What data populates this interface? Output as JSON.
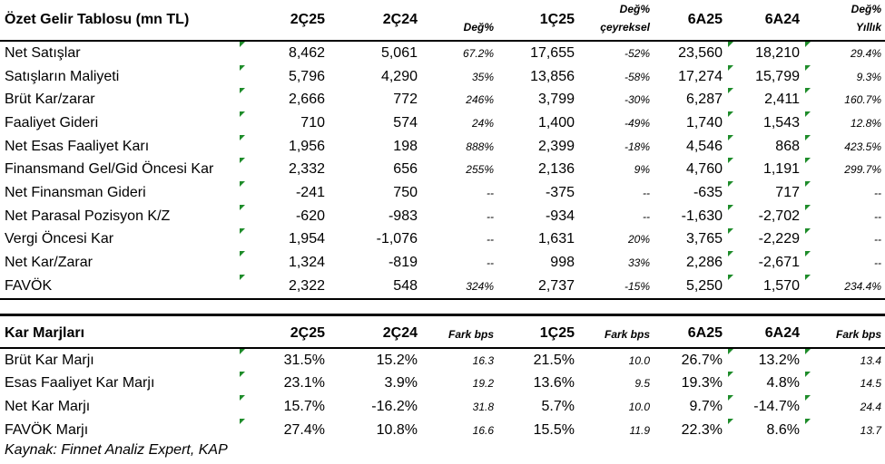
{
  "income": {
    "title": "Özet Gelir Tablosu (mn TL)",
    "columns": [
      "2Ç25",
      "2Ç24",
      "Değ%",
      "1Ç25",
      "Değ%\nçeyreksel",
      "6A25",
      "6A24",
      "Değ%\nYıllık"
    ],
    "rows": [
      {
        "label": "Net Satışlar",
        "cells": [
          "8,462",
          "5,061",
          "67.2%",
          "17,655",
          "-52%",
          "23,560",
          "18,210",
          "29.4%"
        ]
      },
      {
        "label": "Satışların Maliyeti",
        "cells": [
          "5,796",
          "4,290",
          "35%",
          "13,856",
          "-58%",
          "17,274",
          "15,799",
          "9.3%"
        ]
      },
      {
        "label": "Brüt Kar/zarar",
        "cells": [
          "2,666",
          "772",
          "246%",
          "3,799",
          "-30%",
          "6,287",
          "2,411",
          "160.7%"
        ]
      },
      {
        "label": "Faaliyet Gideri",
        "cells": [
          "710",
          "574",
          "24%",
          "1,400",
          "-49%",
          "1,740",
          "1,543",
          "12.8%"
        ]
      },
      {
        "label": "Net Esas Faaliyet Karı",
        "cells": [
          "1,956",
          "198",
          "888%",
          "2,399",
          "-18%",
          "4,546",
          "868",
          "423.5%"
        ]
      },
      {
        "label": "Finansmand Gel/Gid Öncesi Kar",
        "cells": [
          "2,332",
          "656",
          "255%",
          "2,136",
          "9%",
          "4,760",
          "1,191",
          "299.7%"
        ]
      },
      {
        "label": "Net Finansman Gideri",
        "cells": [
          "-241",
          "750",
          "--",
          "-375",
          "--",
          "-635",
          "717",
          "--"
        ]
      },
      {
        "label": "Net Parasal Pozisyon K/Z",
        "cells": [
          "-620",
          "-983",
          "--",
          "-934",
          "--",
          "-1,630",
          "-2,702",
          "--"
        ]
      },
      {
        "label": "Vergi Öncesi Kar",
        "cells": [
          "1,954",
          "-1,076",
          "--",
          "1,631",
          "20%",
          "3,765",
          "-2,229",
          "--"
        ]
      },
      {
        "label": "Net Kar/Zarar",
        "cells": [
          "1,324",
          "-819",
          "--",
          "998",
          "33%",
          "2,286",
          "-2,671",
          "--"
        ]
      },
      {
        "label": "FAVÖK",
        "cells": [
          "2,322",
          "548",
          "324%",
          "2,737",
          "-15%",
          "5,250",
          "1,570",
          "234.4%"
        ]
      }
    ]
  },
  "margins": {
    "title": "Kar Marjları",
    "columns": [
      "2Ç25",
      "2Ç24",
      "Fark bps",
      "1Ç25",
      "Fark bps",
      "6A25",
      "6A24",
      "Fark bps"
    ],
    "rows": [
      {
        "label": "Brüt Kar Marjı",
        "cells": [
          "31.5%",
          "15.2%",
          "16.3",
          "21.5%",
          "10.0",
          "26.7%",
          "13.2%",
          "13.4"
        ]
      },
      {
        "label": "Esas Faaliyet Kar Marjı",
        "cells": [
          "23.1%",
          "3.9%",
          "19.2",
          "13.6%",
          "9.5",
          "19.3%",
          "4.8%",
          "14.5"
        ]
      },
      {
        "label": "Net Kar Marjı",
        "cells": [
          "15.7%",
          "-16.2%",
          "31.8",
          "5.7%",
          "10.0",
          "9.7%",
          "-14.7%",
          "24.4"
        ]
      },
      {
        "label": "FAVÖK Marjı",
        "cells": [
          "27.4%",
          "10.8%",
          "16.6",
          "15.5%",
          "11.9",
          "22.3%",
          "8.6%",
          "13.7"
        ]
      }
    ]
  },
  "source": "Kaynak: Finnet Analiz Expert, KAP",
  "colors": {
    "indicator": "#1e8c2a"
  }
}
